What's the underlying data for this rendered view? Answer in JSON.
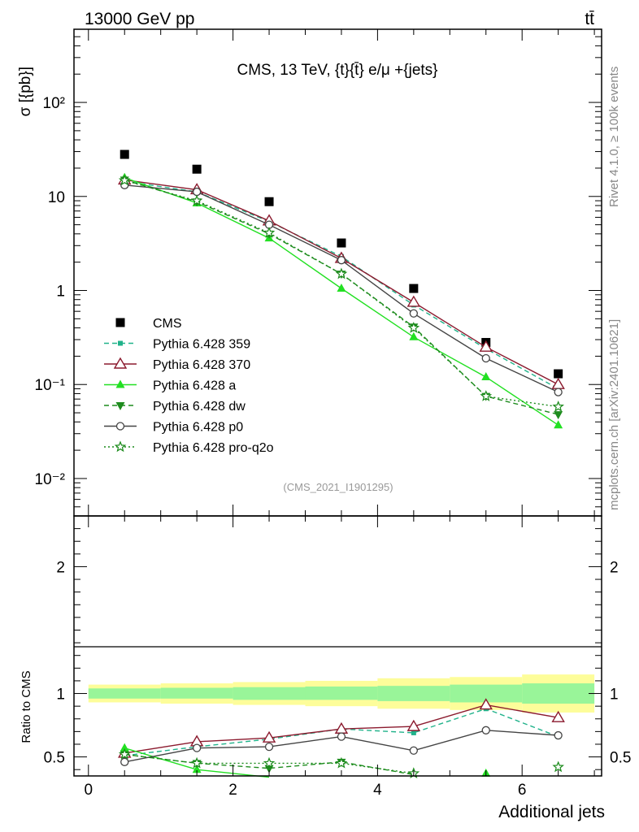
{
  "header": {
    "left": "13000 GeV pp",
    "right": "tt̄"
  },
  "side_labels": {
    "rivet": "Rivet 4.1.0, ≥ 100k events",
    "mcplots": "mcplots.cern.ch [arXiv:2401.10621]"
  },
  "colors": {
    "cms": "#000000",
    "p359": "#20b28a",
    "p370": "#8b1a2e",
    "pa": "#22e022",
    "pdw": "#1e8c1e",
    "pp0": "#444444",
    "pq2o": "#1a8a1a",
    "band_inner": "#99f599",
    "band_outer": "#fdfd9a"
  },
  "chart_data": [
    {
      "type": "scatter",
      "title": "CMS, 13 TeV, {t}{t̄} e/μ +{jets}",
      "watermark": "(CMS_2021_I1901295)",
      "ylabel": "σ [{pb}]",
      "yscale": "log",
      "ylim": [
        0.004,
        600
      ],
      "xlim": [
        -0.2,
        7.1
      ],
      "ytick_labels": [
        "10⁻²",
        "10⁻¹",
        "1",
        "10",
        "10²"
      ],
      "ytick_values": [
        0.01,
        0.1,
        1,
        10,
        100
      ],
      "x": [
        0.5,
        1.5,
        2.5,
        3.5,
        4.5,
        5.5,
        6.5
      ],
      "series": [
        {
          "key": "cms",
          "name": "CMS",
          "values": [
            28,
            19.5,
            8.8,
            3.2,
            1.05,
            0.28,
            0.13
          ]
        },
        {
          "key": "p359",
          "name": "Pythia 6.428 359",
          "values": [
            14.5,
            11.2,
            5.4,
            2.3,
            0.7,
            0.24,
            0.09
          ]
        },
        {
          "key": "p370",
          "name": "Pythia 6.428 370",
          "values": [
            15,
            11.8,
            5.5,
            2.2,
            0.75,
            0.25,
            0.1
          ]
        },
        {
          "key": "pa",
          "name": "Pythia 6.428 a",
          "values": [
            15.8,
            8.5,
            3.6,
            1.05,
            0.32,
            0.12,
            0.037
          ]
        },
        {
          "key": "pdw",
          "name": "Pythia 6.428 dw",
          "values": [
            15,
            8.8,
            4.0,
            1.5,
            0.41,
            0.075,
            0.048
          ]
        },
        {
          "key": "pp0",
          "name": "Pythia 6.428 p0",
          "values": [
            13.2,
            11.2,
            5.0,
            2.1,
            0.57,
            0.19,
            0.083
          ]
        },
        {
          "key": "pq2o",
          "name": "Pythia 6.428 pro-q2o",
          "values": [
            14.8,
            9.0,
            4.1,
            1.5,
            0.4,
            0.075,
            0.058
          ]
        }
      ]
    },
    {
      "type": "scatter",
      "ylabel": "Ratio to CMS",
      "xlabel": "Additional jets",
      "ylim": [
        0.35,
        2.4
      ],
      "xtick_labels": [
        "0",
        "2",
        "4",
        "6"
      ],
      "xtick_values": [
        0,
        2,
        4,
        6
      ],
      "ytick_labels": [
        "0.5",
        "1",
        "2"
      ],
      "ytick_values": [
        0.5,
        1,
        2
      ],
      "x": [
        0.5,
        1.5,
        2.5,
        3.5,
        4.5,
        5.5,
        6.5
      ],
      "band_edges": [
        0,
        1,
        2,
        3,
        4,
        5,
        6,
        7
      ],
      "band_inner": [
        [
          0.96,
          1.04
        ],
        [
          0.96,
          1.045
        ],
        [
          0.95,
          1.05
        ],
        [
          0.95,
          1.055
        ],
        [
          0.94,
          1.06
        ],
        [
          0.93,
          1.07
        ],
        [
          0.92,
          1.08
        ]
      ],
      "band_outer": [
        [
          0.93,
          1.07
        ],
        [
          0.92,
          1.08
        ],
        [
          0.91,
          1.09
        ],
        [
          0.9,
          1.1
        ],
        [
          0.88,
          1.12
        ],
        [
          0.87,
          1.13
        ],
        [
          0.85,
          1.15
        ]
      ],
      "series": [
        {
          "key": "p359",
          "values": [
            0.51,
            0.58,
            0.64,
            0.72,
            0.69,
            0.88,
            0.66
          ]
        },
        {
          "key": "p370",
          "values": [
            0.53,
            0.62,
            0.65,
            0.72,
            0.74,
            0.91,
            0.81
          ]
        },
        {
          "key": "pa",
          "values": [
            0.57,
            0.4,
            0.34,
            null,
            null,
            0.37,
            null
          ]
        },
        {
          "key": "pdw",
          "values": [
            0.52,
            0.45,
            0.41,
            0.46,
            0.36,
            null,
            null
          ]
        },
        {
          "key": "pp0",
          "values": [
            0.46,
            0.57,
            0.58,
            0.66,
            0.55,
            0.71,
            0.67
          ]
        },
        {
          "key": "pq2o",
          "values": [
            0.52,
            0.45,
            0.45,
            0.45,
            0.37,
            null,
            0.42
          ]
        }
      ]
    }
  ]
}
